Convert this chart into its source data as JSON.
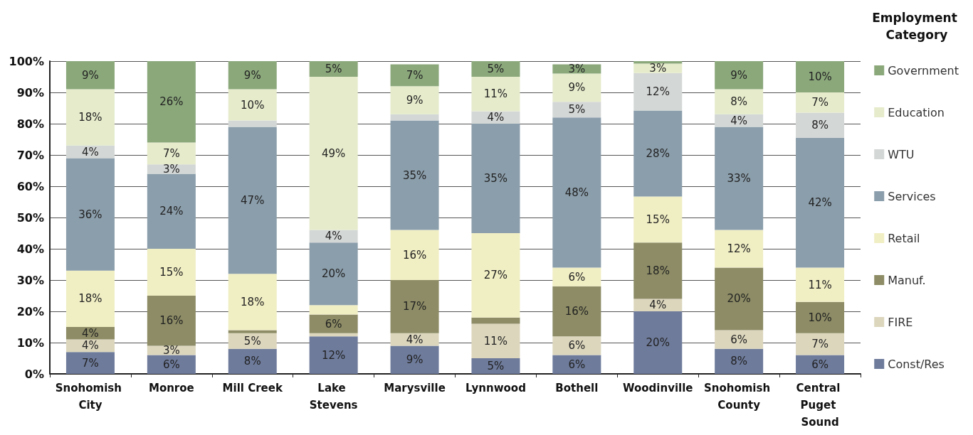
{
  "chart_data": {
    "type": "bar",
    "stacked": true,
    "legend_title": "Employment Category",
    "legend": "right",
    "categories": [
      "Snohomish City",
      "Monroe",
      "Mill Creek",
      "Lake Stevens",
      "Marysville",
      "Lynnwood",
      "Bothell",
      "Woodinville",
      "Snohomish County",
      "Central Puget Sound"
    ],
    "ylim": [
      0,
      100
    ],
    "yticks": [
      {
        "value": 0,
        "label": "0%"
      },
      {
        "value": 10,
        "label": "10%"
      },
      {
        "value": 20,
        "label": "20%"
      },
      {
        "value": 30,
        "label": "30%"
      },
      {
        "value": 40,
        "label": "40%"
      },
      {
        "value": 50,
        "label": "50%"
      },
      {
        "value": 60,
        "label": "60%"
      },
      {
        "value": 70,
        "label": "70%"
      },
      {
        "value": 80,
        "label": "80%"
      },
      {
        "value": 90,
        "label": "90%"
      },
      {
        "value": 100,
        "label": "100%"
      }
    ],
    "grid": "y",
    "series": [
      {
        "name": "Const/Res",
        "color": "#6e7b9b",
        "values": [
          7,
          6,
          8,
          12,
          9,
          5,
          6,
          20,
          8,
          6
        ],
        "value_labels": [
          "7%",
          "6%",
          "8%",
          "12%",
          "9%",
          "5%",
          "6%",
          "20%",
          "8%",
          "6%"
        ]
      },
      {
        "name": "FIRE",
        "color": "#dcd6bd",
        "values": [
          4,
          3,
          5,
          1,
          4,
          11,
          6,
          4,
          6,
          7
        ],
        "value_labels": [
          "4%",
          "3%",
          "5%",
          null,
          "4%",
          "11%",
          "6%",
          "4%",
          "6%",
          "7%"
        ]
      },
      {
        "name": "Manuf.",
        "color": "#8d8c66",
        "values": [
          4,
          16,
          1,
          6,
          17,
          2,
          16,
          18,
          20,
          10
        ],
        "value_labels": [
          "4%",
          "16%",
          null,
          "6%",
          "17%",
          null,
          "16%",
          "18%",
          "20%",
          "10%"
        ]
      },
      {
        "name": "Retail",
        "color": "#f0eec3",
        "values": [
          18,
          15,
          18,
          3,
          16,
          27,
          6,
          14.7,
          12,
          11
        ],
        "value_labels": [
          "18%",
          "15%",
          "18%",
          null,
          "16%",
          "27%",
          "6%",
          "15%",
          "12%",
          "11%"
        ]
      },
      {
        "name": "Services",
        "color": "#8b9eab",
        "values": [
          36,
          24,
          47,
          20,
          35,
          35,
          48,
          27.5,
          33,
          41.5
        ],
        "value_labels": [
          "36%",
          "24%",
          "47%",
          "20%",
          "35%",
          "35%",
          "48%",
          "28%",
          "33%",
          "42%"
        ]
      },
      {
        "name": "WTU",
        "color": "#d3d7d5",
        "values": [
          4,
          3,
          2,
          4,
          2,
          4,
          5,
          12,
          4,
          8
        ],
        "value_labels": [
          "4%",
          "3%",
          null,
          "4%",
          null,
          "4%",
          "5%",
          "12%",
          "4%",
          "8%"
        ]
      },
      {
        "name": "Education",
        "color": "#e5ebcb",
        "values": [
          18,
          7,
          10,
          49,
          9,
          11,
          9,
          3,
          8,
          6.5
        ],
        "value_labels": [
          "18%",
          "7%",
          "10%",
          "49%",
          "9%",
          "11%",
          "9%",
          "3%",
          "8%",
          "7%"
        ]
      },
      {
        "name": "Government",
        "color": "#8ba87b",
        "values": [
          9,
          26,
          9,
          5,
          7,
          5,
          3,
          0.8,
          9,
          10
        ],
        "value_labels": [
          "9%",
          "26%",
          "9%",
          "5%",
          "7%",
          "5%",
          "3%",
          null,
          "9%",
          "10%"
        ]
      }
    ]
  }
}
